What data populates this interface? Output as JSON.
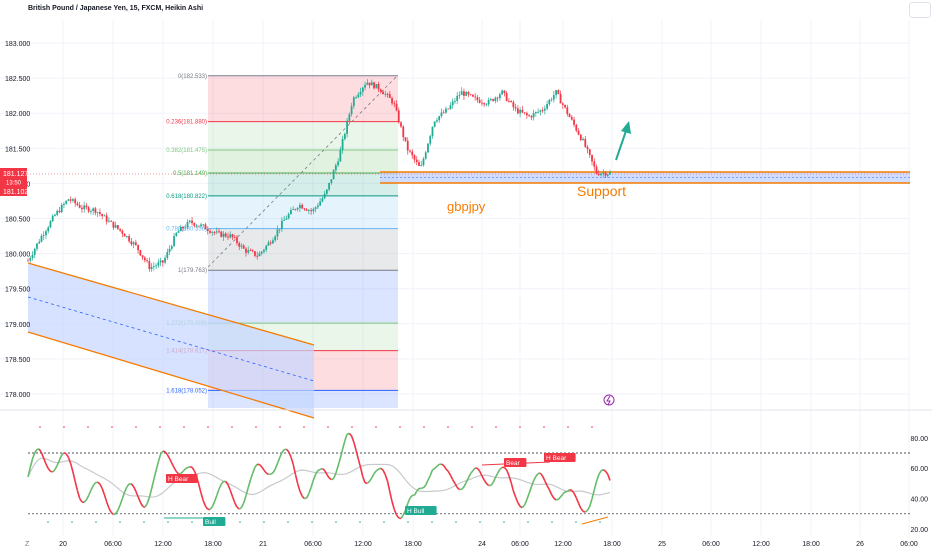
{
  "header": {
    "symbol_title": "British Pound / Japanese Yen, 15, FXCM, Heikin Ashi"
  },
  "price_axis": {
    "labels": [
      "183.000",
      "182.500",
      "182.000",
      "181.500",
      "181.000",
      "180.500",
      "180.000",
      "179.500",
      "179.000",
      "178.500",
      "178.000"
    ],
    "current_price": "181.127",
    "countdown": "13:50",
    "other_price": "181.102"
  },
  "time_axis": {
    "labels": [
      "20",
      "06:00",
      "12:00",
      "18:00",
      "21",
      "06:00",
      "12:00",
      "18:00",
      "24",
      "06:00",
      "12:00",
      "18:00",
      "25",
      "06:00",
      "12:00",
      "18:00",
      "26",
      "06:00"
    ]
  },
  "fib_levels": [
    {
      "ratio": "0",
      "price": "182.533",
      "label": "0(182.533)",
      "color": "#787b86"
    },
    {
      "ratio": "0.236",
      "price": "181.880",
      "label": "0.236(181.880)",
      "color": "#f23645"
    },
    {
      "ratio": "0.382",
      "price": "181.475",
      "label": "0.382(181.475)",
      "color": "#81c784"
    },
    {
      "ratio": "0.5",
      "price": "181.149",
      "label": "0.5(181.149)",
      "color": "#4caf50"
    },
    {
      "ratio": "0.618",
      "price": "180.822",
      "label": "0.618(180.822)",
      "color": "#089981"
    },
    {
      "ratio": "0.786",
      "price": "180.356",
      "label": "0.786(180.356)",
      "color": "#64b5f6"
    },
    {
      "ratio": "1",
      "price": "179.763",
      "label": "1(179.763)",
      "color": "#787b86"
    },
    {
      "ratio": "1.272",
      "price": "179.009",
      "label": "1.272(179.009)",
      "color": "#81c784"
    },
    {
      "ratio": "1.414",
      "price": "178.617",
      "label": "1.414(178.617)",
      "color": "#f23645"
    },
    {
      "ratio": "1.618",
      "price": "178.052",
      "label": "1.618(178.052)",
      "color": "#2962ff"
    }
  ],
  "annotations": {
    "symbol_note": "gbpjpy",
    "support_label": "Support"
  },
  "oscillator": {
    "axis_labels": [
      "80.00",
      "60.00",
      "40.00",
      "20.00"
    ],
    "upper_level": 70,
    "lower_level": 30,
    "signals": [
      "H Bear",
      "Bull",
      "H Bull",
      "Bear",
      "H Bear"
    ]
  },
  "colors": {
    "bull": "#22ab94",
    "bear": "#f23645",
    "support": "#f57c00",
    "channel_fill": "#c5d5ff",
    "arrow": "#22ab94"
  },
  "chart_data": {
    "type": "candlestick",
    "title": "British Pound / Japanese Yen, 15, FXCM, Heikin Ashi",
    "y_range": [
      177.85,
      183.3
    ],
    "oscillator_range": [
      20,
      90
    ],
    "series": [
      {
        "name": "price",
        "points": [
          [
            "19 20:00",
            179.9
          ],
          [
            "20 00:00",
            180.25
          ],
          [
            "20 02:00",
            180.55
          ],
          [
            "20 04:00",
            180.78
          ],
          [
            "20 06:00",
            180.65
          ],
          [
            "20 09:00",
            180.62
          ],
          [
            "20 12:00",
            180.45
          ],
          [
            "20 15:00",
            180.3
          ],
          [
            "20 17:00",
            180.1
          ],
          [
            "20 18:00",
            179.8
          ],
          [
            "20 19:00",
            179.88
          ],
          [
            "20 22:00",
            180.3
          ],
          [
            "21 00:00",
            180.45
          ],
          [
            "21 01:00",
            180.38
          ],
          [
            "21 03:00",
            180.28
          ],
          [
            "21 05:00",
            180.25
          ],
          [
            "21 06:00",
            180.05
          ],
          [
            "21 06:30",
            179.97
          ],
          [
            "21 07:00",
            180.2
          ],
          [
            "21 08:00",
            180.5
          ],
          [
            "21 09:00",
            180.7
          ],
          [
            "21 10:30",
            180.6
          ],
          [
            "21 11:30",
            180.85
          ],
          [
            "21 12:00",
            181.4
          ],
          [
            "21 12:30",
            182.2
          ],
          [
            "21 13:30",
            182.45
          ],
          [
            "21 14:30",
            182.35
          ],
          [
            "21 15:30",
            182.15
          ],
          [
            "21 16:00",
            181.5
          ],
          [
            "21 16:30",
            181.2
          ],
          [
            "21 17:30",
            181.9
          ],
          [
            "21 19:00",
            182.05
          ],
          [
            "21 21:00",
            182.3
          ],
          [
            "21 22:30",
            182.2
          ],
          [
            "23 00:00",
            182.15
          ],
          [
            "23 02:00",
            182.3
          ],
          [
            "23 03:00",
            182.05
          ],
          [
            "23 04:00",
            181.95
          ],
          [
            "23 05:00",
            182.05
          ],
          [
            "23 06:30",
            182.3
          ],
          [
            "23 08:00",
            181.95
          ],
          [
            "23 09:00",
            181.6
          ],
          [
            "23 10:00",
            181.15
          ],
          [
            "23 11:00",
            181.15
          ]
        ]
      }
    ]
  }
}
